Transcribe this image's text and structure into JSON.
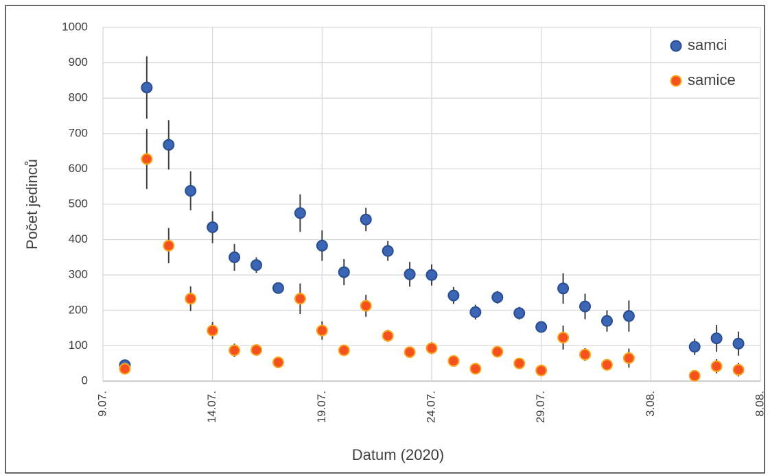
{
  "chart_data": {
    "type": "scatter",
    "x_label": "Datum (2020)",
    "y_label": "Počet jedinců",
    "x": [
      "10.07.",
      "11.07.",
      "12.07.",
      "13.07.",
      "14.07.",
      "15.07.",
      "16.07.",
      "17.07.",
      "18.07.",
      "19.07.",
      "20.07.",
      "21.07.",
      "22.07.",
      "23.07.",
      "24.07.",
      "25.07.",
      "26.07.",
      "27.07.",
      "28.07.",
      "29.07.",
      "30.07.",
      "31.07.",
      "1.08.",
      "2.08.",
      "5.08.",
      "6.08.",
      "7.08."
    ],
    "xlim": [
      "9.07.",
      "8.08."
    ],
    "xticks": [
      "9.07.",
      "14.07.",
      "19.07.",
      "24.07.",
      "29.07.",
      "3.08.",
      "8.08."
    ],
    "ylim": [
      0,
      1000
    ],
    "yticks": [
      0,
      100,
      200,
      300,
      400,
      500,
      600,
      700,
      800,
      900,
      1000
    ],
    "grid": true,
    "legend": "upper right",
    "series": [
      {
        "name": "samci",
        "color": "#3b66b5",
        "edge_color": "#2a4d8f",
        "values": [
          45,
          830,
          668,
          538,
          435,
          350,
          328,
          263,
          475,
          383,
          308,
          457,
          368,
          302,
          300,
          242,
          195,
          237,
          192,
          153,
          262,
          211,
          170,
          184,
          97,
          121,
          106
        ],
        "errors": [
          0,
          88,
          70,
          55,
          45,
          38,
          22,
          15,
          53,
          43,
          37,
          33,
          28,
          35,
          30,
          24,
          21,
          18,
          18,
          14,
          43,
          36,
          30,
          44,
          23,
          38,
          34
        ]
      },
      {
        "name": "samice",
        "color": "#f4511e",
        "edge_color": "#f7a51c",
        "values": [
          35,
          628,
          383,
          233,
          143,
          87,
          88,
          53,
          233,
          143,
          87,
          213,
          128,
          82,
          93,
          57,
          35,
          83,
          50,
          30,
          123,
          75,
          46,
          65,
          15,
          42,
          32
        ],
        "errors": [
          0,
          85,
          50,
          35,
          24,
          19,
          8,
          5,
          43,
          26,
          14,
          31,
          17,
          5,
          17,
          5,
          5,
          5,
          5,
          5,
          34,
          18,
          5,
          27,
          5,
          20,
          19
        ]
      }
    ]
  }
}
